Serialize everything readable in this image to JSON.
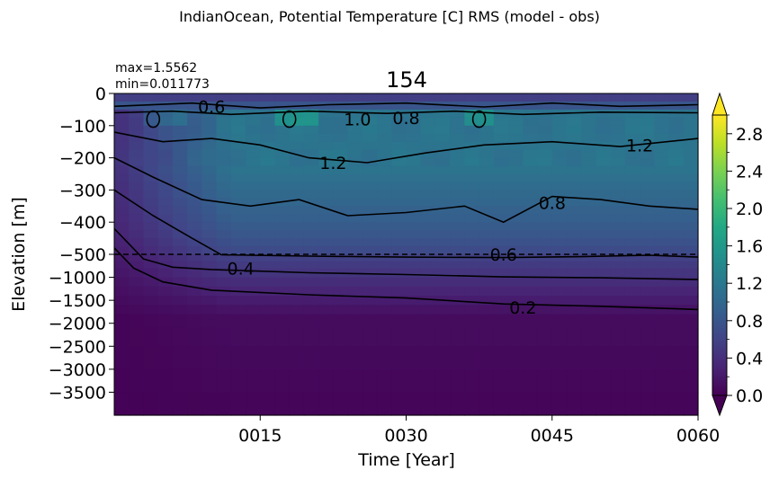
{
  "figure": {
    "suptitle": "IndianOcean, Potential Temperature [C] RMS (model - obs)",
    "panel_title": "154",
    "stats": [
      "max=1.5562",
      "min=0.011773"
    ]
  },
  "chart_data": {
    "type": "heatmap",
    "title": "154",
    "xlabel": "Time [Year]",
    "ylabel": "Elevation [m]",
    "x_tick_labels": [
      "0015",
      "0030",
      "0045",
      "0060"
    ],
    "x_tick_values": [
      15,
      30,
      45,
      60
    ],
    "xlim": [
      0,
      60
    ],
    "y_tick_labels": [
      "0",
      "−100",
      "−200",
      "−300",
      "−400",
      "−500",
      "−1000",
      "−1500",
      "−2000",
      "−2500",
      "−3000",
      "−3500"
    ],
    "y_tick_values": [
      0,
      -100,
      -200,
      -300,
      -400,
      -500,
      -1000,
      -1500,
      -2000,
      -2500,
      -3000,
      -3500
    ],
    "ylim": [
      -4000,
      0
    ],
    "y_scale": "linear above -500 m, compressed linear below -500 m",
    "reference_line": -500,
    "colorbar": {
      "range": [
        0,
        3
      ],
      "tick_labels": [
        "0.0",
        "0.4",
        "0.8",
        "1.2",
        "1.6",
        "2.0",
        "2.4",
        "2.8"
      ],
      "tick_values": [
        0,
        0.4,
        0.8,
        1.2,
        1.6,
        2.0,
        2.4,
        2.8
      ],
      "extend": "both",
      "colormap": "viridis"
    },
    "contour_labels": [
      {
        "text": "0.6",
        "x": 10,
        "y": -40
      },
      {
        "text": "1.0",
        "x": 25,
        "y": -80
      },
      {
        "text": "0.8",
        "x": 30,
        "y": -75
      },
      {
        "text": "1.2",
        "x": 22.5,
        "y": -215
      },
      {
        "text": "1.2",
        "x": 54,
        "y": -160
      },
      {
        "text": "0.8",
        "x": 45,
        "y": -340
      },
      {
        "text": "0.6",
        "x": 40,
        "y": -500
      },
      {
        "text": "0.4",
        "x": 13,
        "y": -800
      },
      {
        "text": "0.2",
        "x": 42,
        "y": -1650
      }
    ],
    "data_range": {
      "max": 1.5562,
      "min": 0.011773
    }
  }
}
